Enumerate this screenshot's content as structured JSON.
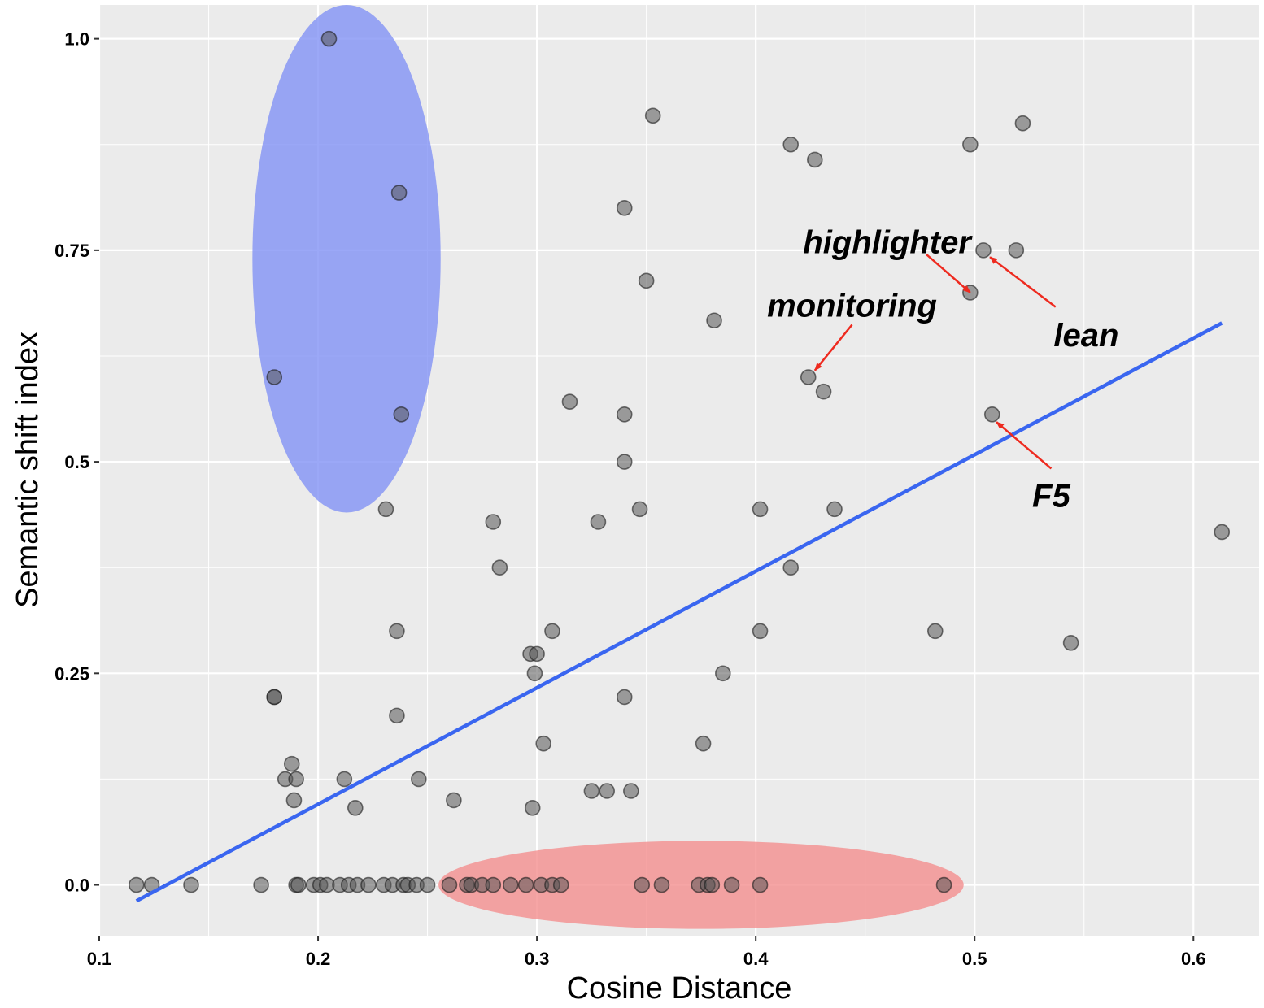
{
  "chart_data": {
    "type": "scatter",
    "title": "",
    "xlabel": "Cosine Distance",
    "ylabel": "Semantic shift index",
    "xlim": [
      0.1,
      0.63
    ],
    "ylim": [
      -0.06,
      1.04
    ],
    "x_ticks": [
      {
        "value": 0.1,
        "label": "0.1"
      },
      {
        "value": 0.2,
        "label": "0.2"
      },
      {
        "value": 0.3,
        "label": "0.3"
      },
      {
        "value": 0.4,
        "label": "0.4"
      },
      {
        "value": 0.5,
        "label": "0.5"
      },
      {
        "value": 0.6,
        "label": "0.6"
      }
    ],
    "y_ticks": [
      {
        "value": 0,
        "label": "0.0"
      },
      {
        "value": 0.25,
        "label": "0.25"
      },
      {
        "value": 0.5,
        "label": "0.5"
      },
      {
        "value": 0.75,
        "label": "0.75"
      },
      {
        "value": 1,
        "label": "1.0"
      }
    ],
    "grid": true,
    "background_color": "#ebebeb",
    "point_color": "#555555",
    "regression_color": "#3a66f0",
    "points": [
      [
        0.205,
        1.0
      ],
      [
        0.237,
        0.818
      ],
      [
        0.18,
        0.6
      ],
      [
        0.238,
        0.556
      ],
      [
        0.353,
        0.909
      ],
      [
        0.416,
        0.875
      ],
      [
        0.427,
        0.857
      ],
      [
        0.498,
        0.875
      ],
      [
        0.522,
        0.9
      ],
      [
        0.34,
        0.8
      ],
      [
        0.504,
        0.75
      ],
      [
        0.519,
        0.75
      ],
      [
        0.35,
        0.714
      ],
      [
        0.498,
        0.7
      ],
      [
        0.381,
        0.667
      ],
      [
        0.424,
        0.6
      ],
      [
        0.431,
        0.583
      ],
      [
        0.315,
        0.571
      ],
      [
        0.34,
        0.556
      ],
      [
        0.508,
        0.556
      ],
      [
        0.34,
        0.5
      ],
      [
        0.231,
        0.444
      ],
      [
        0.347,
        0.444
      ],
      [
        0.402,
        0.444
      ],
      [
        0.436,
        0.444
      ],
      [
        0.28,
        0.429
      ],
      [
        0.328,
        0.429
      ],
      [
        0.613,
        0.417
      ],
      [
        0.283,
        0.375
      ],
      [
        0.416,
        0.375
      ],
      [
        0.236,
        0.3
      ],
      [
        0.307,
        0.3
      ],
      [
        0.402,
        0.3
      ],
      [
        0.482,
        0.3
      ],
      [
        0.544,
        0.286
      ],
      [
        0.297,
        0.273
      ],
      [
        0.3,
        0.273
      ],
      [
        0.299,
        0.25
      ],
      [
        0.385,
        0.25
      ],
      [
        0.18,
        0.222
      ],
      [
        0.18,
        0.222
      ],
      [
        0.34,
        0.222
      ],
      [
        0.236,
        0.2
      ],
      [
        0.303,
        0.167
      ],
      [
        0.376,
        0.167
      ],
      [
        0.188,
        0.143
      ],
      [
        0.185,
        0.125
      ],
      [
        0.19,
        0.125
      ],
      [
        0.212,
        0.125
      ],
      [
        0.246,
        0.125
      ],
      [
        0.325,
        0.111
      ],
      [
        0.332,
        0.111
      ],
      [
        0.343,
        0.111
      ],
      [
        0.262,
        0.1
      ],
      [
        0.189,
        0.1
      ],
      [
        0.217,
        0.091
      ],
      [
        0.298,
        0.091
      ],
      [
        0.117,
        0
      ],
      [
        0.124,
        0
      ],
      [
        0.142,
        0
      ],
      [
        0.174,
        0
      ],
      [
        0.19,
        0
      ],
      [
        0.191,
        0
      ],
      [
        0.198,
        0
      ],
      [
        0.201,
        0
      ],
      [
        0.204,
        0
      ],
      [
        0.21,
        0
      ],
      [
        0.214,
        0
      ],
      [
        0.218,
        0
      ],
      [
        0.223,
        0
      ],
      [
        0.23,
        0
      ],
      [
        0.234,
        0
      ],
      [
        0.239,
        0
      ],
      [
        0.241,
        0
      ],
      [
        0.245,
        0
      ],
      [
        0.25,
        0
      ],
      [
        0.26,
        0
      ],
      [
        0.268,
        0
      ],
      [
        0.27,
        0
      ],
      [
        0.275,
        0
      ],
      [
        0.28,
        0
      ],
      [
        0.288,
        0
      ],
      [
        0.295,
        0
      ],
      [
        0.302,
        0
      ],
      [
        0.307,
        0
      ],
      [
        0.311,
        0
      ],
      [
        0.348,
        0
      ],
      [
        0.357,
        0
      ],
      [
        0.374,
        0
      ],
      [
        0.378,
        0
      ],
      [
        0.38,
        0
      ],
      [
        0.389,
        0
      ],
      [
        0.402,
        0
      ],
      [
        0.486,
        0
      ]
    ],
    "regression_line": {
      "x": [
        0.117,
        0.613
      ],
      "y": [
        -0.019,
        0.664
      ]
    },
    "highlight_regions": [
      {
        "name": "blue-ellipse",
        "color": "#7f8ff5",
        "center": [
          0.213,
          0.74
        ],
        "radius": [
          0.043,
          0.3
        ]
      },
      {
        "name": "red-ellipse",
        "color": "#f48c8c",
        "center": [
          0.375,
          0
        ],
        "radius": [
          0.12,
          0.052
        ]
      }
    ],
    "annotations": [
      {
        "text": "highlighter",
        "text_pos": [
          0.46,
          0.76
        ],
        "point": [
          0.498,
          0.7
        ],
        "arrow_from": [
          0.478,
          0.745
        ]
      },
      {
        "text": "lean",
        "text_pos": [
          0.551,
          0.65
        ],
        "point": [
          0.507,
          0.742
        ],
        "arrow_from": [
          0.537,
          0.683
        ]
      },
      {
        "text": "monitoring",
        "text_pos": [
          0.444,
          0.685
        ],
        "point": [
          0.427,
          0.608
        ],
        "arrow_from": [
          0.444,
          0.662
        ]
      },
      {
        "text": "F5",
        "text_pos": [
          0.535,
          0.46
        ],
        "point": [
          0.51,
          0.547
        ],
        "arrow_from": [
          0.535,
          0.492
        ]
      }
    ],
    "annotation_arrow_color": "#ee2a1f"
  }
}
